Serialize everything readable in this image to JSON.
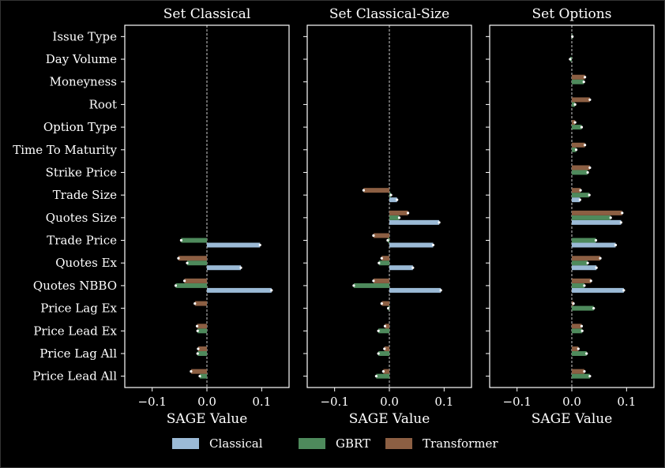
{
  "chart_data": {
    "type": "bar",
    "orientation": "horizontal",
    "categories": [
      "Issue Type",
      "Day Volume",
      "Moneyness",
      "Root",
      "Option Type",
      "Time To Maturity",
      "Strike Price",
      "Trade Size",
      "Quotes Size",
      "Trade Price",
      "Quotes Ex",
      "Quotes NBBO",
      "Price Lag Ex",
      "Price Lead Ex",
      "Price Lag All",
      "Price Lead All"
    ],
    "xlabel": "SAGE Value",
    "xlim": [
      -0.15,
      0.15
    ],
    "xticks": [
      -0.1,
      0.0,
      0.1
    ],
    "xtick_labels": [
      "−0.1",
      "0.0",
      "0.1"
    ],
    "grid": false,
    "legend_placement": "bottom-center",
    "series_styles": [
      {
        "name": "Classical",
        "color": "#9bbad6"
      },
      {
        "name": "GBRT",
        "color": "#4e8a5c"
      },
      {
        "name": "Transformer",
        "color": "#8c5f43"
      }
    ],
    "panels": [
      {
        "title": "Set Classical",
        "series": [
          {
            "name": "Classical",
            "values": [
              null,
              null,
              null,
              null,
              null,
              null,
              null,
              null,
              null,
              0.097,
              0.062,
              0.118,
              null,
              null,
              null,
              null
            ]
          },
          {
            "name": "GBRT",
            "values": [
              null,
              null,
              null,
              null,
              null,
              null,
              null,
              null,
              null,
              -0.047,
              -0.036,
              -0.057,
              null,
              -0.017,
              -0.017,
              -0.013
            ]
          },
          {
            "name": "Transformer",
            "values": [
              null,
              null,
              null,
              null,
              null,
              null,
              null,
              null,
              null,
              null,
              -0.052,
              -0.041,
              -0.022,
              -0.018,
              -0.016,
              -0.029
            ]
          }
        ]
      },
      {
        "title": "Set Classical-Size",
        "series": [
          {
            "name": "Classical",
            "values": [
              null,
              null,
              null,
              null,
              null,
              null,
              null,
              0.014,
              0.091,
              0.08,
              0.043,
              0.094,
              null,
              null,
              null,
              null
            ]
          },
          {
            "name": "GBRT",
            "values": [
              null,
              null,
              null,
              null,
              null,
              null,
              null,
              0.003,
              0.018,
              -0.003,
              -0.019,
              -0.065,
              -0.002,
              -0.02,
              -0.02,
              -0.024
            ]
          },
          {
            "name": "Transformer",
            "values": [
              null,
              null,
              null,
              null,
              null,
              null,
              null,
              -0.047,
              0.034,
              -0.029,
              -0.014,
              -0.029,
              -0.014,
              -0.008,
              -0.009,
              -0.011
            ]
          }
        ]
      },
      {
        "title": "Set Options",
        "series": [
          {
            "name": "Classical",
            "values": [
              null,
              null,
              null,
              null,
              null,
              null,
              null,
              0.015,
              0.09,
              0.08,
              0.045,
              0.095,
              null,
              null,
              null,
              null
            ]
          },
          {
            "name": "GBRT",
            "values": [
              0.001,
              -0.003,
              0.022,
              0.006,
              0.018,
              0.008,
              0.029,
              0.032,
              0.071,
              0.044,
              0.029,
              0.023,
              0.04,
              0.019,
              0.027,
              0.033
            ]
          },
          {
            "name": "Transformer",
            "values": [
              null,
              null,
              0.024,
              0.033,
              0.006,
              0.024,
              0.033,
              0.016,
              0.092,
              null,
              0.052,
              0.035,
              0.003,
              0.018,
              0.012,
              0.023
            ]
          }
        ]
      }
    ]
  }
}
